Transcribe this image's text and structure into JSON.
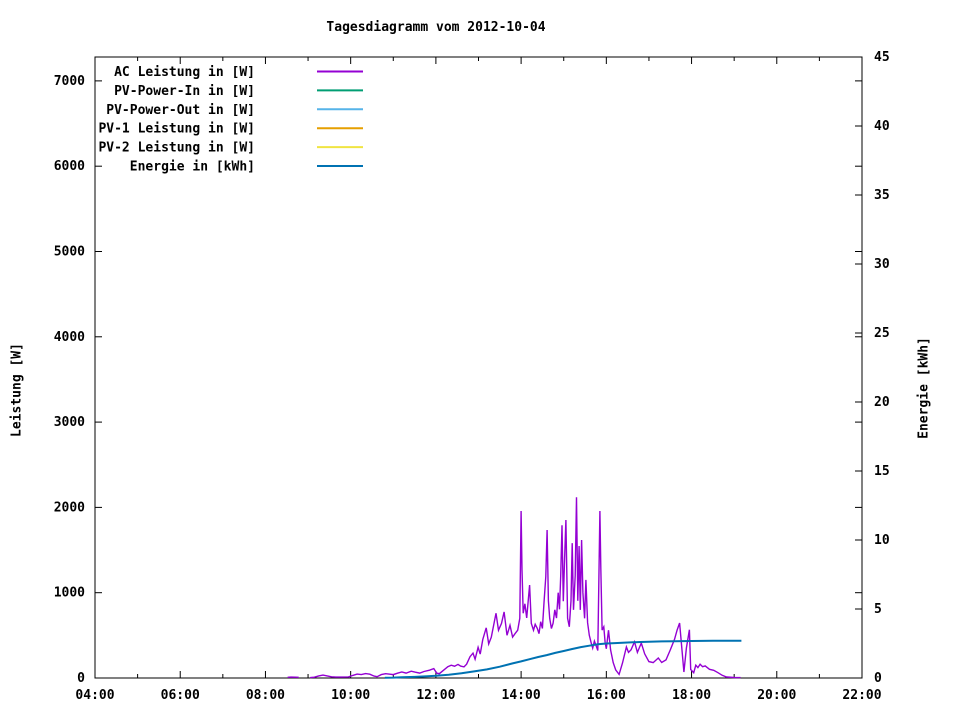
{
  "title": "Tagesdiagramm vom 2012-10-04",
  "chart_data": {
    "type": "line",
    "title": "Tagesdiagramm vom 2012-10-04",
    "grid": false,
    "legend_position": "top-left-inside",
    "x_axis": {
      "range_hours": [
        4,
        22
      ],
      "major_ticks": [
        {
          "t": 4,
          "label": "04:00"
        },
        {
          "t": 6,
          "label": "06:00"
        },
        {
          "t": 8,
          "label": "08:00"
        },
        {
          "t": 10,
          "label": "10:00"
        },
        {
          "t": 12,
          "label": "12:00"
        },
        {
          "t": 14,
          "label": "14:00"
        },
        {
          "t": 16,
          "label": "16:00"
        },
        {
          "t": 18,
          "label": "18:00"
        },
        {
          "t": 20,
          "label": "20:00"
        },
        {
          "t": 22,
          "label": "22:00"
        }
      ],
      "minor_ticks": [
        5,
        7,
        9,
        11,
        13,
        15,
        17,
        19,
        21
      ]
    },
    "y_left": {
      "label": "Leistung [W]",
      "range": [
        0,
        7280
      ],
      "ticks": [
        0,
        1000,
        2000,
        3000,
        4000,
        5000,
        6000,
        7000
      ]
    },
    "y_right": {
      "label": "Energie [kWh]",
      "range": [
        0,
        45
      ],
      "ticks": [
        0,
        5,
        10,
        15,
        20,
        25,
        30,
        35,
        40,
        45
      ]
    },
    "legend": [
      {
        "label": "AC Leistung in [W]",
        "color": "#9400d3"
      },
      {
        "label": "PV-Power-In in [W]",
        "color": "#009e73"
      },
      {
        "label": "PV-Power-Out in [W]",
        "color": "#56b4e9"
      },
      {
        "label": "PV-1 Leistung in [W]",
        "color": "#e69f00"
      },
      {
        "label": "PV-2 Leistung in [W]",
        "color": "#f0e442"
      },
      {
        "label": "Energie in [kWh]",
        "color": "#0072b2"
      }
    ],
    "series": [
      {
        "name": "AC Leistung in [W]",
        "color": "#9400d3",
        "axis": "left",
        "stroke_width": 1.4,
        "points": [
          [
            8.52,
            8
          ],
          [
            8.6,
            11
          ],
          [
            8.7,
            9
          ],
          [
            8.78,
            8
          ],
          null,
          [
            9.05,
            5
          ],
          [
            9.15,
            9
          ],
          [
            9.25,
            25
          ],
          [
            9.35,
            34
          ],
          [
            9.45,
            25
          ],
          [
            9.55,
            14
          ],
          [
            9.65,
            10
          ],
          [
            9.8,
            10
          ],
          [
            9.95,
            13
          ],
          [
            10.05,
            30
          ],
          [
            10.15,
            46
          ],
          [
            10.25,
            40
          ],
          [
            10.35,
            52
          ],
          [
            10.45,
            44
          ],
          [
            10.55,
            22
          ],
          [
            10.62,
            15
          ],
          [
            10.72,
            40
          ],
          [
            10.82,
            50
          ],
          [
            10.92,
            44
          ],
          [
            11.0,
            40
          ],
          [
            11.1,
            56
          ],
          [
            11.2,
            70
          ],
          [
            11.3,
            58
          ],
          [
            11.42,
            80
          ],
          [
            11.52,
            68
          ],
          [
            11.62,
            58
          ],
          [
            11.72,
            76
          ],
          [
            11.85,
            92
          ],
          [
            11.95,
            110
          ],
          [
            12.02,
            58
          ],
          [
            12.08,
            50
          ],
          [
            12.18,
            92
          ],
          [
            12.28,
            132
          ],
          [
            12.36,
            150
          ],
          [
            12.44,
            138
          ],
          [
            12.52,
            160
          ],
          [
            12.58,
            140
          ],
          [
            12.66,
            130
          ],
          [
            12.72,
            162
          ],
          [
            12.8,
            250
          ],
          [
            12.87,
            292
          ],
          [
            12.92,
            220
          ],
          [
            12.99,
            360
          ],
          [
            13.04,
            280
          ],
          [
            13.1,
            452
          ],
          [
            13.18,
            588
          ],
          [
            13.24,
            400
          ],
          [
            13.3,
            478
          ],
          [
            13.41,
            760
          ],
          [
            13.47,
            560
          ],
          [
            13.54,
            640
          ],
          [
            13.6,
            775
          ],
          [
            13.67,
            500
          ],
          [
            13.74,
            618
          ],
          [
            13.8,
            480
          ],
          [
            13.86,
            520
          ],
          [
            13.92,
            560
          ],
          [
            13.97,
            700
          ],
          [
            14.0,
            1958
          ],
          [
            14.02,
            1268
          ],
          [
            14.05,
            760
          ],
          [
            14.09,
            870
          ],
          [
            14.13,
            705
          ],
          [
            14.17,
            930
          ],
          [
            14.2,
            1090
          ],
          [
            14.24,
            640
          ],
          [
            14.29,
            560
          ],
          [
            14.33,
            630
          ],
          [
            14.38,
            582
          ],
          [
            14.42,
            520
          ],
          [
            14.46,
            660
          ],
          [
            14.5,
            582
          ],
          [
            14.54,
            900
          ],
          [
            14.58,
            1190
          ],
          [
            14.61,
            1735
          ],
          [
            14.64,
            905
          ],
          [
            14.67,
            700
          ],
          [
            14.71,
            580
          ],
          [
            14.75,
            642
          ],
          [
            14.79,
            800
          ],
          [
            14.83,
            702
          ],
          [
            14.87,
            1000
          ],
          [
            14.9,
            805
          ],
          [
            14.93,
            1195
          ],
          [
            14.96,
            1790
          ],
          [
            14.99,
            900
          ],
          [
            15.02,
            1400
          ],
          [
            15.05,
            1852
          ],
          [
            15.09,
            700
          ],
          [
            15.13,
            600
          ],
          [
            15.17,
            905
          ],
          [
            15.2,
            1580
          ],
          [
            15.23,
            800
          ],
          [
            15.27,
            1200
          ],
          [
            15.3,
            2120
          ],
          [
            15.33,
            905
          ],
          [
            15.36,
            1548
          ],
          [
            15.39,
            800
          ],
          [
            15.42,
            1618
          ],
          [
            15.45,
            1000
          ],
          [
            15.49,
            700
          ],
          [
            15.52,
            1150
          ],
          [
            15.56,
            648
          ],
          [
            15.6,
            500
          ],
          [
            15.64,
            420
          ],
          [
            15.68,
            352
          ],
          [
            15.72,
            432
          ],
          [
            15.76,
            380
          ],
          [
            15.8,
            322
          ],
          [
            15.85,
            1958
          ],
          [
            15.87,
            1300
          ],
          [
            15.9,
            562
          ],
          [
            15.94,
            600
          ],
          [
            15.97,
            420
          ],
          [
            16.0,
            342
          ],
          [
            16.05,
            560
          ],
          [
            16.1,
            330
          ],
          [
            16.16,
            180
          ],
          [
            16.22,
            95
          ],
          [
            16.3,
            42
          ],
          [
            16.38,
            176
          ],
          [
            16.47,
            364
          ],
          [
            16.52,
            300
          ],
          [
            16.58,
            330
          ],
          [
            16.66,
            424
          ],
          [
            16.73,
            300
          ],
          [
            16.82,
            410
          ],
          [
            16.9,
            282
          ],
          [
            17.0,
            192
          ],
          [
            17.1,
            180
          ],
          [
            17.22,
            235
          ],
          [
            17.3,
            182
          ],
          [
            17.4,
            212
          ],
          [
            17.5,
            330
          ],
          [
            17.6,
            452
          ],
          [
            17.66,
            562
          ],
          [
            17.72,
            645
          ],
          [
            17.78,
            300
          ],
          [
            17.82,
            70
          ],
          [
            17.88,
            352
          ],
          [
            17.95,
            565
          ],
          [
            17.98,
            100
          ],
          [
            18.05,
            62
          ],
          [
            18.1,
            150
          ],
          [
            18.15,
            122
          ],
          [
            18.2,
            162
          ],
          [
            18.26,
            132
          ],
          [
            18.32,
            142
          ],
          [
            18.42,
            102
          ],
          [
            18.52,
            90
          ],
          [
            18.62,
            62
          ],
          [
            18.72,
            32
          ],
          [
            18.82,
            12
          ],
          [
            19.0,
            6
          ],
          [
            19.15,
            5
          ]
        ]
      },
      {
        "name": "Energie in [kWh]",
        "color": "#0072b2",
        "axis": "right",
        "stroke_width": 2,
        "points": [
          [
            10.8,
            0.02
          ],
          [
            11.0,
            0.03
          ],
          [
            11.2,
            0.05
          ],
          [
            11.5,
            0.08
          ],
          [
            11.8,
            0.12
          ],
          [
            12.0,
            0.16
          ],
          [
            12.3,
            0.24
          ],
          [
            12.6,
            0.34
          ],
          [
            12.9,
            0.48
          ],
          [
            13.2,
            0.62
          ],
          [
            13.5,
            0.82
          ],
          [
            13.8,
            1.06
          ],
          [
            14.0,
            1.2
          ],
          [
            14.2,
            1.36
          ],
          [
            14.4,
            1.52
          ],
          [
            14.6,
            1.66
          ],
          [
            14.8,
            1.82
          ],
          [
            15.0,
            1.96
          ],
          [
            15.2,
            2.1
          ],
          [
            15.4,
            2.24
          ],
          [
            15.6,
            2.34
          ],
          [
            15.8,
            2.44
          ],
          [
            16.0,
            2.5
          ],
          [
            16.2,
            2.53
          ],
          [
            16.5,
            2.57
          ],
          [
            16.8,
            2.61
          ],
          [
            17.0,
            2.63
          ],
          [
            17.3,
            2.65
          ],
          [
            17.6,
            2.67
          ],
          [
            18.0,
            2.68
          ],
          [
            18.5,
            2.7
          ],
          [
            19.0,
            2.7
          ],
          [
            19.17,
            2.7
          ]
        ]
      }
    ]
  }
}
